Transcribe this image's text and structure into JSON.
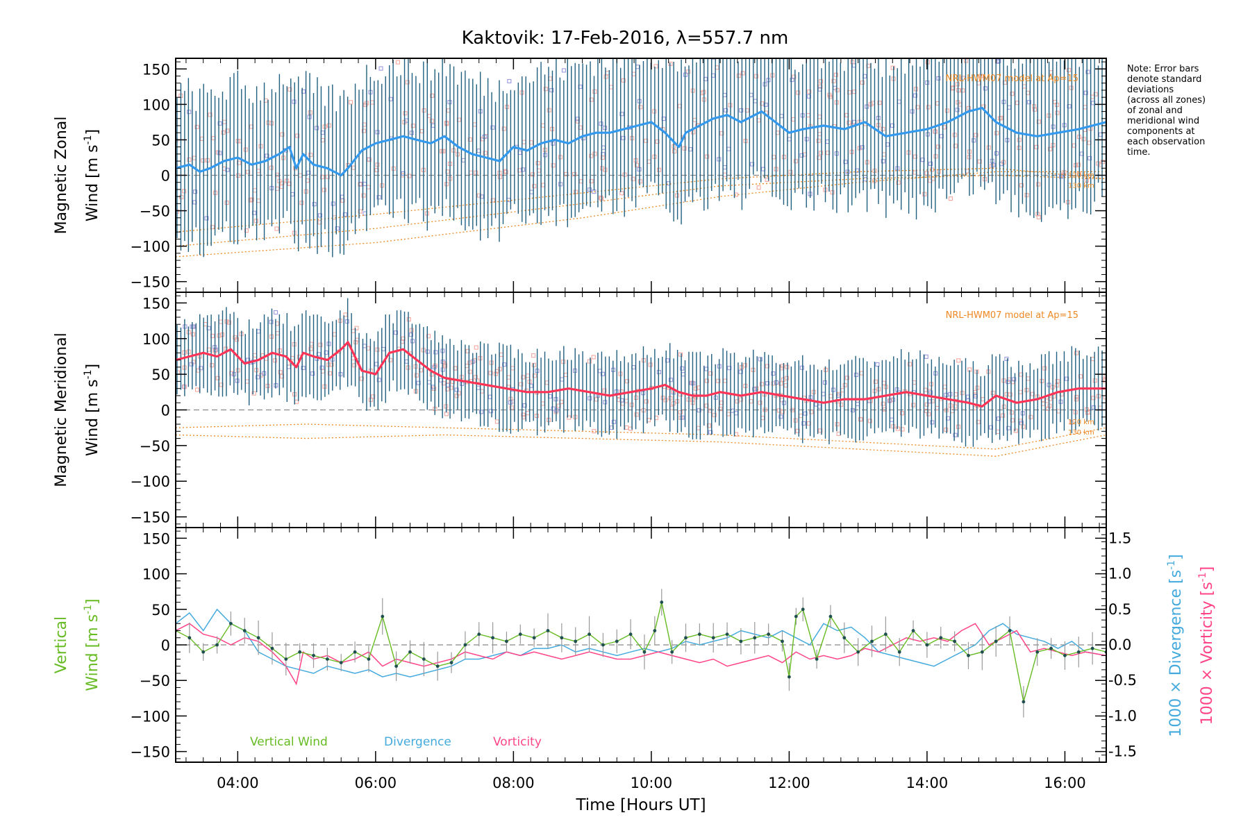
{
  "title": "Kaktovik: 17-Feb-2016, λ=557.7 nm",
  "note": [
    "Note: Error bars",
    "denote standard",
    "deviations",
    "(across all zones)",
    "of zonal and",
    "meridional wind",
    "components at",
    "each observation",
    "time."
  ],
  "colors": {
    "zonal_mean": "#3399ee",
    "zonal_mean_dark": "#1133dd",
    "meridional_mean": "#ff3355",
    "errorbar": "#1f5f7f",
    "model": "#ee8822",
    "vertical": "#66bb22",
    "divergence": "#44aadd",
    "vorticity": "#ff4488",
    "scatter_pink": "#f4a8a0",
    "scatter_blue": "#9999dd"
  },
  "chart_data": [
    {
      "type": "line",
      "panel": "zonal",
      "ylabel_line1": "Magnetic Zonal",
      "ylabel_line2": "Wind [m s",
      "ylabel_sup": "-1",
      "ylabel_end": "]",
      "ylim": [
        -165,
        165
      ],
      "yticks": [
        -150,
        -100,
        -50,
        0,
        50,
        100,
        150
      ],
      "xlim": [
        3.1,
        16.6
      ],
      "model_label": "NRL-HWM07 model at Ap=15",
      "altitude_labels": [
        "120 km",
        "130 km"
      ],
      "series": [
        {
          "x": [
            3.1,
            3.3,
            3.45,
            3.6,
            3.8,
            4.0,
            4.2,
            4.4,
            4.6,
            4.75,
            4.85,
            4.95,
            5.1,
            5.3,
            5.5,
            5.6,
            5.8,
            6.0,
            6.2,
            6.4,
            6.6,
            6.8,
            7.0,
            7.2,
            7.4,
            7.6,
            7.8,
            8.0,
            8.2,
            8.4,
            8.6,
            8.8,
            9.0,
            9.2,
            9.4,
            9.6,
            9.8,
            10.0,
            10.2,
            10.4,
            10.5,
            10.7,
            10.9,
            11.1,
            11.3,
            11.6,
            11.8,
            12.0,
            12.2,
            12.5,
            12.8,
            13.1,
            13.4,
            13.7,
            14.0,
            14.3,
            14.6,
            14.8,
            15.0,
            15.3,
            15.6,
            15.9,
            16.2,
            16.6
          ],
          "y": [
            10,
            15,
            5,
            10,
            20,
            25,
            15,
            20,
            30,
            40,
            10,
            30,
            15,
            10,
            0,
            10,
            35,
            45,
            50,
            55,
            50,
            45,
            55,
            40,
            30,
            25,
            20,
            40,
            35,
            45,
            50,
            45,
            55,
            60,
            60,
            65,
            70,
            75,
            60,
            40,
            60,
            70,
            80,
            85,
            75,
            90,
            75,
            60,
            65,
            70,
            65,
            75,
            55,
            60,
            65,
            75,
            90,
            95,
            75,
            60,
            55,
            60,
            65,
            75
          ]
        }
      ],
      "errorbar_halfwidth_approx": 100
    },
    {
      "type": "line",
      "panel": "meridional",
      "ylabel_line1": "Magnetic Meridional",
      "ylabel_line2": "Wind [m s",
      "ylabel_sup": "-1",
      "ylabel_end": "]",
      "ylim": [
        -165,
        165
      ],
      "yticks": [
        -150,
        -100,
        -50,
        0,
        50,
        100,
        150
      ],
      "xlim": [
        3.1,
        16.6
      ],
      "model_label": "NRL-HWM07 model at Ap=15",
      "altitude_labels": [
        "120 km",
        "130 km"
      ],
      "series": [
        {
          "x": [
            3.1,
            3.3,
            3.5,
            3.7,
            3.9,
            4.1,
            4.3,
            4.5,
            4.7,
            4.85,
            4.95,
            5.1,
            5.3,
            5.5,
            5.6,
            5.8,
            6.0,
            6.2,
            6.4,
            6.6,
            6.8,
            7.0,
            7.3,
            7.6,
            7.9,
            8.2,
            8.5,
            8.8,
            9.1,
            9.4,
            9.7,
            10.0,
            10.2,
            10.4,
            10.6,
            10.8,
            11.0,
            11.3,
            11.6,
            11.9,
            12.2,
            12.5,
            12.8,
            13.1,
            13.4,
            13.7,
            14.0,
            14.3,
            14.6,
            14.8,
            15.0,
            15.3,
            15.6,
            15.9,
            16.2,
            16.6
          ],
          "y": [
            70,
            75,
            80,
            75,
            85,
            65,
            70,
            80,
            75,
            60,
            80,
            75,
            70,
            85,
            95,
            55,
            50,
            80,
            85,
            70,
            55,
            45,
            40,
            35,
            30,
            25,
            25,
            30,
            25,
            20,
            25,
            30,
            35,
            25,
            20,
            20,
            25,
            20,
            25,
            20,
            15,
            10,
            15,
            15,
            20,
            25,
            20,
            15,
            10,
            5,
            20,
            10,
            15,
            25,
            30,
            30
          ]
        }
      ],
      "errorbar_halfwidth_approx": 50
    },
    {
      "type": "line",
      "panel": "vertical",
      "ylabel_line1": "Vertical",
      "ylabel_line2": "Wind [m s",
      "ylabel_sup": "-1",
      "ylabel_end": "]",
      "ylim": [
        -165,
        165
      ],
      "yticks": [
        -150,
        -100,
        -50,
        0,
        50,
        100,
        150
      ],
      "y2lim": [
        -1.65,
        1.65
      ],
      "y2ticks": [
        -1.5,
        -1.0,
        -0.5,
        0.0,
        0.5,
        1.0,
        1.5
      ],
      "y2label_div": "1000 × Divergence [s",
      "y2label_vor": "1000 × Vorticity [s",
      "y2label_sup": "-1",
      "y2label_end": "]",
      "xlim": [
        3.1,
        16.6
      ],
      "xticks": [
        4,
        6,
        8,
        10,
        12,
        14,
        16
      ],
      "xticklabels": [
        "04:00",
        "06:00",
        "08:00",
        "10:00",
        "12:00",
        "14:00",
        "16:00"
      ],
      "xlabel": "Time [Hours UT]",
      "legend": [
        "Vertical Wind",
        "Divergence",
        "Vorticity"
      ],
      "series": [
        {
          "name": "Vertical Wind",
          "x": [
            3.1,
            3.3,
            3.5,
            3.7,
            3.9,
            4.1,
            4.3,
            4.5,
            4.7,
            4.9,
            5.1,
            5.3,
            5.5,
            5.7,
            5.9,
            6.1,
            6.3,
            6.5,
            6.7,
            6.9,
            7.1,
            7.3,
            7.5,
            7.7,
            7.9,
            8.1,
            8.3,
            8.5,
            8.7,
            8.9,
            9.1,
            9.3,
            9.5,
            9.7,
            9.9,
            10.05,
            10.15,
            10.3,
            10.5,
            10.7,
            10.9,
            11.1,
            11.3,
            11.5,
            11.7,
            11.9,
            12.0,
            12.1,
            12.2,
            12.4,
            12.6,
            12.8,
            13.0,
            13.2,
            13.4,
            13.6,
            13.8,
            14.0,
            14.2,
            14.4,
            14.6,
            14.8,
            15.0,
            15.2,
            15.4,
            15.6,
            15.8,
            16.0,
            16.2,
            16.4,
            16.6
          ],
          "y": [
            20,
            10,
            -10,
            0,
            30,
            20,
            10,
            -5,
            -20,
            -10,
            -15,
            -20,
            -25,
            -10,
            -20,
            40,
            -30,
            -10,
            -20,
            -30,
            -25,
            0,
            15,
            10,
            5,
            15,
            10,
            20,
            10,
            5,
            15,
            0,
            5,
            15,
            -10,
            20,
            60,
            -10,
            10,
            15,
            10,
            15,
            5,
            10,
            15,
            5,
            -45,
            40,
            50,
            -20,
            40,
            10,
            -10,
            5,
            15,
            -10,
            20,
            0,
            10,
            5,
            -15,
            -10,
            5,
            20,
            -80,
            -10,
            -5,
            -15,
            -10,
            -5,
            -10
          ]
        },
        {
          "name": "Divergence",
          "x": [
            3.1,
            3.3,
            3.5,
            3.7,
            3.9,
            4.1,
            4.3,
            4.5,
            4.7,
            4.9,
            5.1,
            5.3,
            5.5,
            5.7,
            5.9,
            6.1,
            6.3,
            6.5,
            6.7,
            6.9,
            7.1,
            7.3,
            7.5,
            7.7,
            7.9,
            8.1,
            8.3,
            8.5,
            8.7,
            8.9,
            9.1,
            9.3,
            9.5,
            9.7,
            9.9,
            10.1,
            10.3,
            10.5,
            10.7,
            10.9,
            11.1,
            11.3,
            11.5,
            11.7,
            11.9,
            12.1,
            12.3,
            12.5,
            12.7,
            12.9,
            13.1,
            13.3,
            13.5,
            13.7,
            13.9,
            14.1,
            14.3,
            14.5,
            14.7,
            14.9,
            15.1,
            15.3,
            15.5,
            15.7,
            15.9,
            16.1,
            16.3,
            16.6
          ],
          "y": [
            0.3,
            0.45,
            0.2,
            0.5,
            0.3,
            0.2,
            -0.1,
            -0.2,
            -0.3,
            -0.35,
            -0.4,
            -0.3,
            -0.35,
            -0.4,
            -0.35,
            -0.45,
            -0.4,
            -0.45,
            -0.4,
            -0.35,
            -0.3,
            -0.2,
            -0.2,
            -0.15,
            -0.1,
            -0.15,
            -0.05,
            -0.05,
            0.0,
            -0.1,
            -0.05,
            -0.1,
            -0.15,
            -0.1,
            -0.05,
            -0.1,
            -0.05,
            0.05,
            0.0,
            0.05,
            0.1,
            0.2,
            0.15,
            0.1,
            0.2,
            0.1,
            0.0,
            0.3,
            0.2,
            0.25,
            0.1,
            -0.1,
            -0.15,
            -0.2,
            -0.25,
            -0.3,
            -0.2,
            -0.1,
            0.0,
            0.2,
            0.3,
            0.15,
            0.1,
            0.05,
            -0.05,
            0.05,
            -0.1,
            -0.15
          ]
        },
        {
          "name": "Vorticity",
          "x": [
            3.1,
            3.3,
            3.5,
            3.7,
            3.9,
            4.1,
            4.3,
            4.5,
            4.7,
            4.85,
            4.95,
            5.1,
            5.3,
            5.5,
            5.7,
            5.9,
            6.1,
            6.3,
            6.5,
            6.7,
            6.9,
            7.1,
            7.3,
            7.5,
            7.7,
            7.9,
            8.1,
            8.3,
            8.5,
            8.7,
            8.9,
            9.1,
            9.3,
            9.5,
            9.7,
            9.9,
            10.1,
            10.3,
            10.5,
            10.7,
            10.9,
            11.1,
            11.3,
            11.5,
            11.7,
            11.9,
            12.1,
            12.3,
            12.5,
            12.7,
            12.9,
            13.1,
            13.3,
            13.5,
            13.7,
            13.9,
            14.1,
            14.3,
            14.5,
            14.7,
            14.9,
            15.1,
            15.3,
            15.5,
            15.7,
            15.9,
            16.1,
            16.3,
            16.6
          ],
          "y": [
            0.2,
            0.3,
            0.15,
            0.1,
            0.0,
            0.1,
            0.05,
            -0.1,
            -0.3,
            -0.55,
            -0.1,
            -0.2,
            -0.15,
            -0.25,
            -0.2,
            -0.1,
            -0.3,
            -0.2,
            -0.25,
            -0.3,
            -0.25,
            -0.2,
            -0.1,
            -0.15,
            -0.2,
            -0.1,
            -0.15,
            -0.1,
            -0.15,
            -0.2,
            -0.15,
            -0.1,
            -0.15,
            -0.2,
            -0.2,
            -0.15,
            -0.1,
            -0.15,
            -0.2,
            -0.25,
            -0.2,
            -0.3,
            -0.25,
            -0.2,
            -0.15,
            -0.25,
            -0.1,
            -0.2,
            -0.15,
            -0.2,
            -0.15,
            -0.05,
            -0.1,
            0.0,
            0.1,
            0.05,
            0.1,
            0.05,
            0.2,
            0.3,
            0.0,
            0.1,
            0.2,
            -0.1,
            -0.05,
            -0.1,
            -0.15,
            -0.1,
            -0.15
          ]
        }
      ]
    }
  ]
}
